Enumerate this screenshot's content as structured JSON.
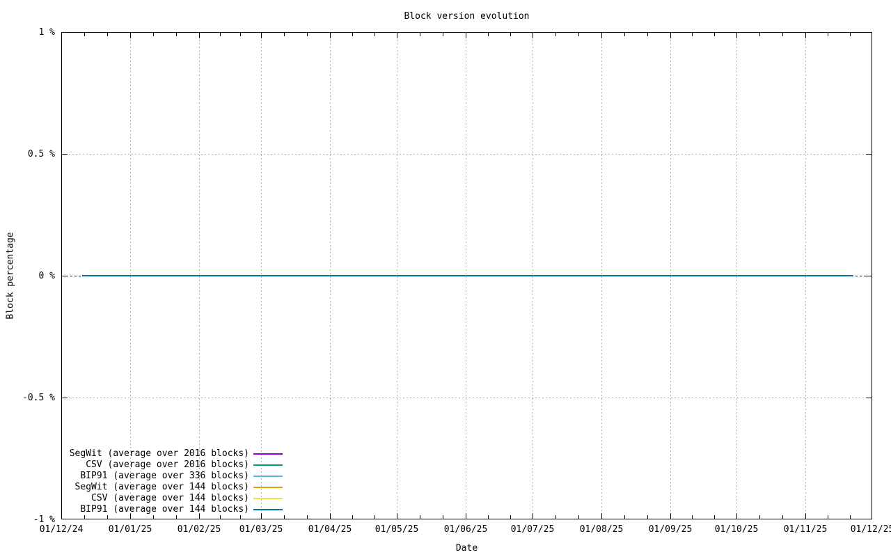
{
  "page": {
    "background_color": "#ffffff",
    "text_color": "#000000"
  },
  "chart_data": {
    "type": "line",
    "title": "Block version evolution",
    "xlabel": "Date",
    "ylabel": "Block percentage",
    "ylim": [
      -1,
      1
    ],
    "grid": true,
    "legend_position": "bottom-left-inside",
    "x_axis": {
      "total_days": 365,
      "start_date_label": "01/12/24",
      "end_date_label": "01/12/25",
      "minor_ticks_per_interval": 2,
      "ticks": [
        {
          "label": "01/12/24",
          "day": 0
        },
        {
          "label": "01/01/25",
          "day": 31
        },
        {
          "label": "01/02/25",
          "day": 62
        },
        {
          "label": "01/03/25",
          "day": 90
        },
        {
          "label": "01/04/25",
          "day": 121
        },
        {
          "label": "01/05/25",
          "day": 151
        },
        {
          "label": "01/06/25",
          "day": 182
        },
        {
          "label": "01/07/25",
          "day": 212
        },
        {
          "label": "01/08/25",
          "day": 243
        },
        {
          "label": "01/09/25",
          "day": 274
        },
        {
          "label": "01/10/25",
          "day": 304
        },
        {
          "label": "01/11/25",
          "day": 335
        },
        {
          "label": "01/12/25",
          "day": 365
        }
      ]
    },
    "y_axis": {
      "ticks": [
        {
          "label": "1 %",
          "value": 1
        },
        {
          "label": "0.5 %",
          "value": 0.5
        },
        {
          "label": "0 %",
          "value": 0
        },
        {
          "label": "-0.5 %",
          "value": -0.5
        },
        {
          "label": "-1 %",
          "value": -1
        }
      ]
    },
    "zero_axis": {
      "style": "black-dashed",
      "value": 0
    },
    "series": [
      {
        "name": "SegWit (average over 2016 blocks)",
        "color": "#9400D3",
        "x_days": [
          9.5,
          356.5
        ],
        "values": [
          0,
          0
        ]
      },
      {
        "name": "CSV (average over 2016 blocks)",
        "color": "#009E73",
        "x_days": [
          9.5,
          356.5
        ],
        "values": [
          0,
          0
        ]
      },
      {
        "name": "BIP91 (average over 336 blocks)",
        "color": "#56B4E9",
        "x_days": [
          9.5,
          356.5
        ],
        "values": [
          0,
          0
        ]
      },
      {
        "name": "SegWit (average over 144 blocks)",
        "color": "#E69F00",
        "x_days": [
          9.5,
          356.5
        ],
        "values": [
          0,
          0
        ]
      },
      {
        "name": "CSV (average over 144 blocks)",
        "color": "#F0E442",
        "x_days": [
          9.5,
          356.5
        ],
        "values": [
          0,
          0
        ]
      },
      {
        "name": "BIP91 (average over 144 blocks)",
        "color": "#0072B2",
        "x_days": [
          9.5,
          356.5
        ],
        "values": [
          0,
          0
        ]
      }
    ]
  }
}
